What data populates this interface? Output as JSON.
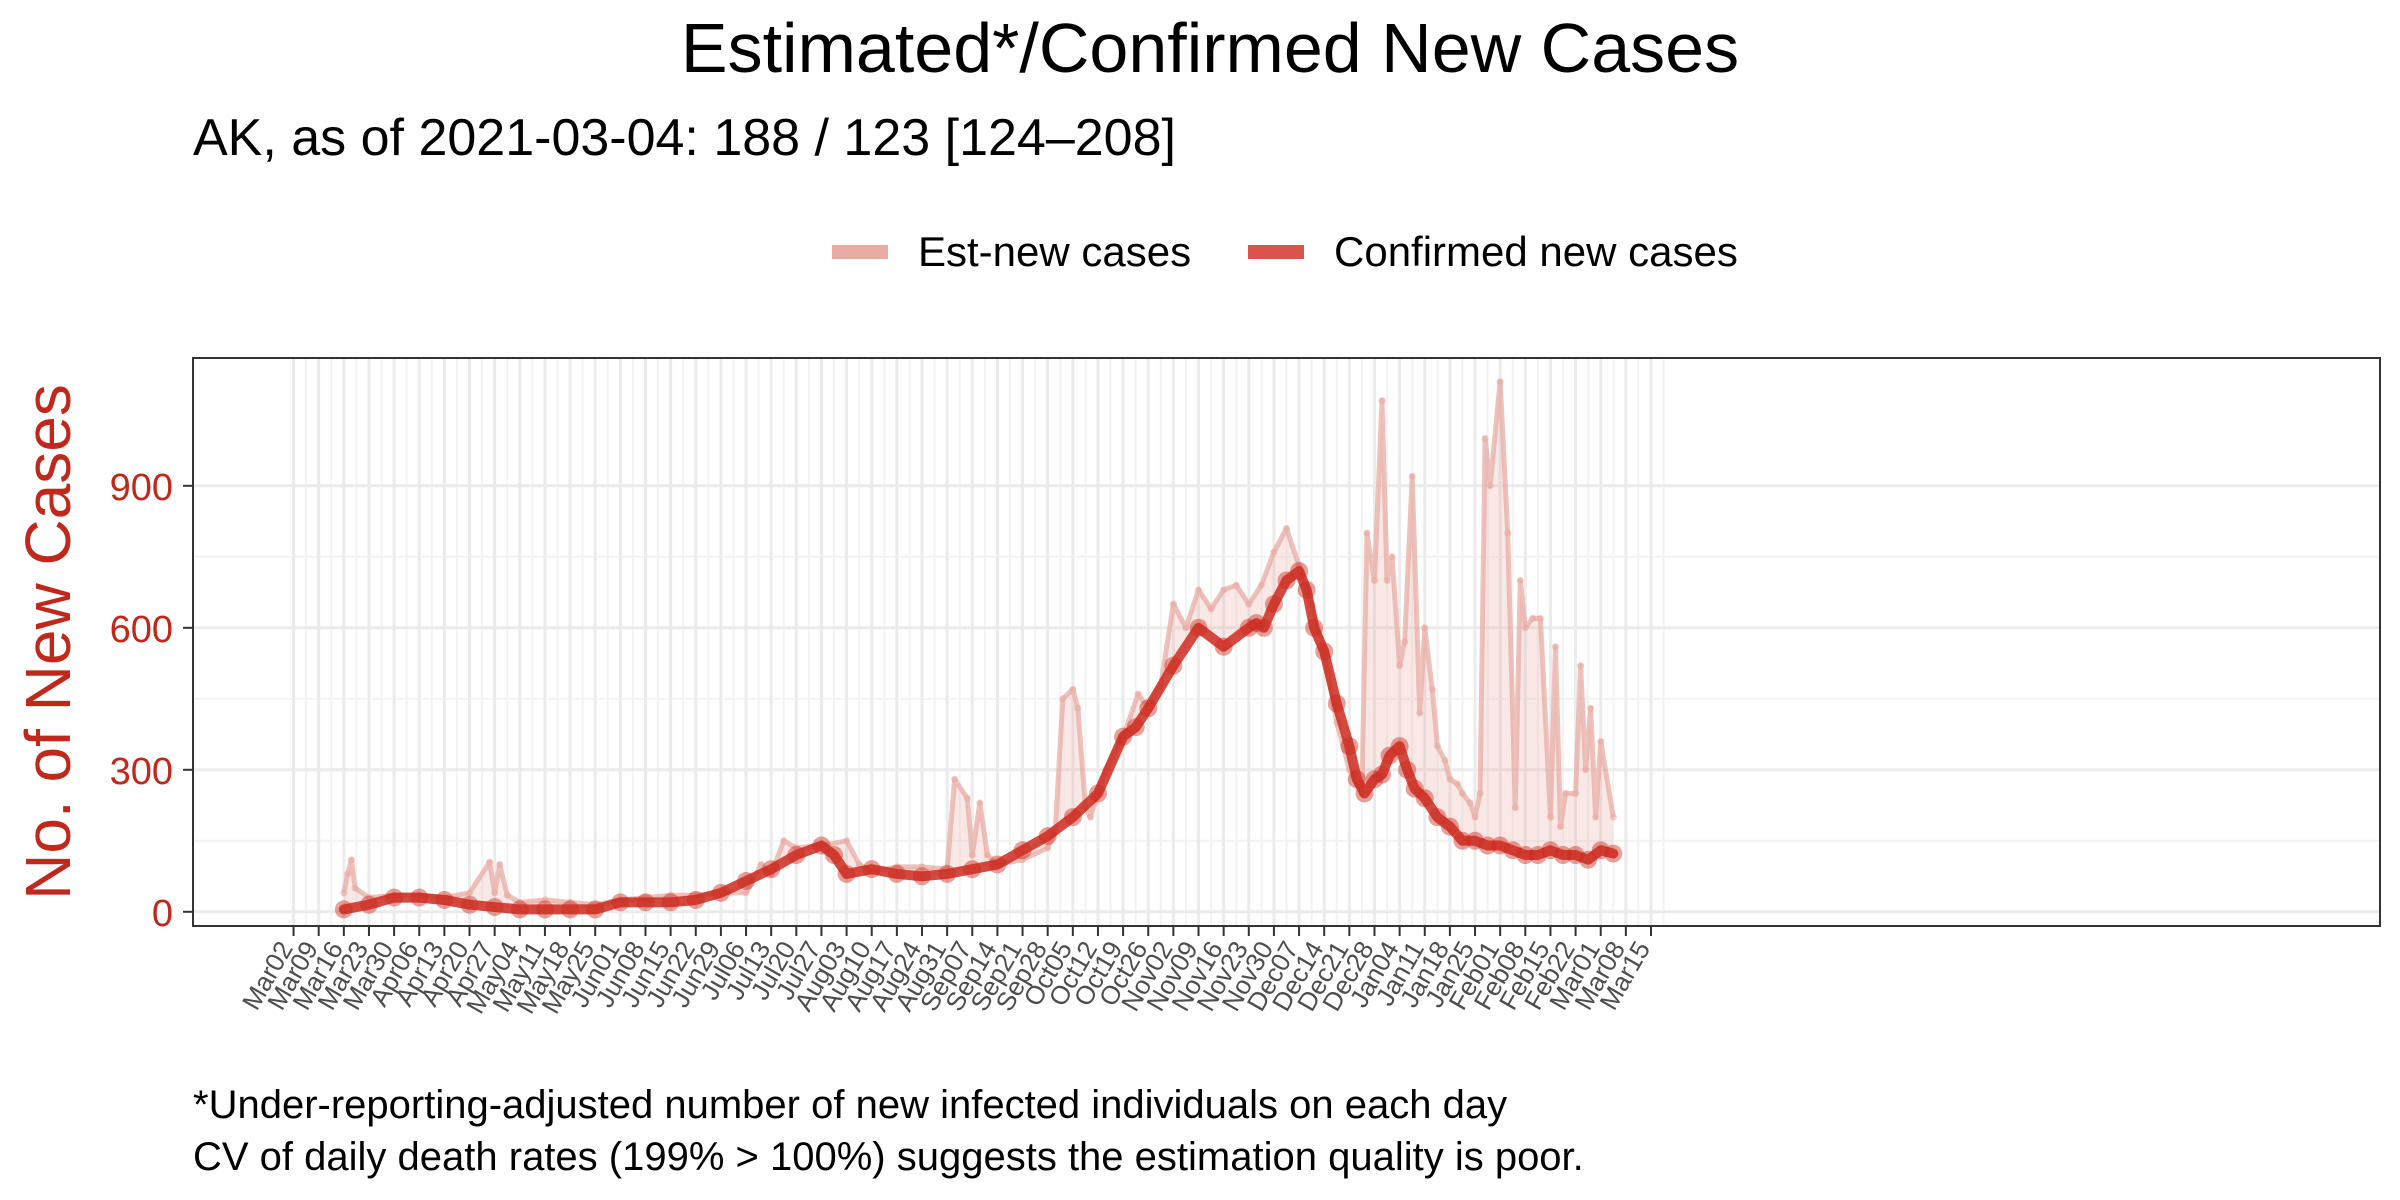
{
  "chart_data": {
    "type": "line",
    "title": "Estimated*/Confirmed New Cases",
    "subtitle": "AK, as of 2021-03-04: 188 / 123 [124–208]",
    "xlabel": "",
    "ylabel": "No. of New Cases",
    "ylim": [
      -30,
      1170
    ],
    "yticks": [
      0,
      300,
      600,
      900
    ],
    "xlim": [
      -4,
      83
    ],
    "grid": true,
    "legend_position": "top",
    "legend": [
      {
        "label": "Est-new cases",
        "color": "#e8aca4"
      },
      {
        "label": "Confirmed new cases",
        "color": "#d9544a"
      }
    ],
    "x_tick_labels": [
      "Mar02",
      "Mar09",
      "Mar16",
      "Mar23",
      "Mar30",
      "Apr06",
      "Apr13",
      "Apr20",
      "Apr27",
      "May04",
      "May11",
      "May18",
      "May25",
      "Jun01",
      "Jun08",
      "Jun15",
      "Jun22",
      "Jun29",
      "Jul06",
      "Jul13",
      "Jul20",
      "Jul27",
      "Aug03",
      "Aug10",
      "Aug17",
      "Aug24",
      "Aug31",
      "Sep07",
      "Sep14",
      "Sep21",
      "Sep28",
      "Oct05",
      "Oct12",
      "Oct19",
      "Oct26",
      "Nov02",
      "Nov09",
      "Nov16",
      "Nov23",
      "Nov30",
      "Dec07",
      "Dec14",
      "Dec21",
      "Dec28",
      "Jan04",
      "Jan11",
      "Jan18",
      "Jan25",
      "Feb01",
      "Feb08",
      "Feb15",
      "Feb22",
      "Mar01",
      "Mar08",
      "Mar15"
    ],
    "x_unit": "weeks since Mar02",
    "series": [
      {
        "name": "Est-new cases",
        "color": "#e8aca4",
        "x": [
          2.0,
          2.15,
          2.3,
          2.45,
          3.0,
          4.0,
          5.0,
          6.0,
          7.0,
          7.8,
          8.0,
          8.2,
          8.5,
          9.0,
          10.0,
          11.0,
          12.0,
          13.0,
          14.0,
          15.0,
          16.0,
          17.0,
          18.0,
          18.6,
          19.0,
          19.5,
          20.0,
          21.0,
          22.0,
          22.5,
          23.0,
          24.0,
          25.0,
          26.0,
          26.3,
          26.8,
          27.0,
          27.3,
          27.6,
          28.0,
          29.0,
          30.0,
          30.3,
          30.6,
          31.0,
          31.2,
          31.5,
          31.7,
          32.0,
          32.3,
          33.0,
          33.6,
          34.0,
          34.5,
          35.0,
          35.5,
          36.0,
          36.5,
          37.0,
          37.5,
          38.0,
          38.5,
          39.0,
          39.5,
          40.0,
          40.5,
          41.0,
          41.5,
          42.0,
          42.5,
          42.7,
          43.0,
          43.3,
          43.5,
          43.7,
          44.0,
          44.2,
          44.5,
          44.8,
          45.0,
          45.3,
          45.5,
          45.8,
          46.0,
          46.3,
          46.5,
          46.8,
          47.0,
          47.2,
          47.4,
          47.6,
          48.0,
          48.3,
          48.6,
          48.8,
          49.0,
          49.3,
          49.6,
          50.0,
          50.2,
          50.4,
          50.6,
          51.0,
          51.2,
          51.4,
          51.6,
          51.8,
          52.0,
          52.5
        ],
        "values": [
          40,
          80,
          110,
          50,
          30,
          35,
          35,
          30,
          40,
          105,
          40,
          100,
          35,
          20,
          25,
          20,
          15,
          25,
          30,
          35,
          35,
          40,
          40,
          100,
          80,
          150,
          135,
          140,
          150,
          100,
          85,
          95,
          95,
          90,
          280,
          240,
          120,
          230,
          120,
          100,
          110,
          135,
          170,
          450,
          470,
          430,
          220,
          200,
          250,
          300,
          370,
          460,
          430,
          480,
          650,
          600,
          680,
          640,
          680,
          690,
          650,
          690,
          760,
          810,
          730,
          650,
          550,
          400,
          300,
          250,
          800,
          700,
          1080,
          700,
          750,
          520,
          570,
          920,
          420,
          600,
          470,
          350,
          320,
          280,
          270,
          250,
          230,
          200,
          250,
          1000,
          900,
          1120,
          800,
          220,
          700,
          600,
          620,
          620,
          200,
          560,
          180,
          250,
          250,
          520,
          300,
          430,
          200,
          360,
          200
        ]
      },
      {
        "name": "Confirmed new cases",
        "color": "#cc2a1e",
        "x": [
          2.0,
          3.0,
          4.0,
          5.0,
          6.0,
          7.0,
          8.0,
          9.0,
          10.0,
          11.0,
          12.0,
          13.0,
          14.0,
          15.0,
          16.0,
          17.0,
          18.0,
          19.0,
          20.0,
          21.0,
          21.5,
          22.0,
          23.0,
          24.0,
          25.0,
          26.0,
          27.0,
          28.0,
          29.0,
          30.0,
          31.0,
          32.0,
          33.0,
          33.5,
          34.0,
          35.0,
          36.0,
          37.0,
          38.0,
          38.3,
          38.6,
          39.0,
          39.5,
          40.0,
          40.3,
          40.6,
          41.0,
          41.5,
          42.0,
          42.3,
          42.6,
          43.0,
          43.3,
          43.6,
          44.0,
          44.3,
          44.6,
          45.0,
          45.5,
          46.0,
          46.5,
          47.0,
          47.5,
          48.0,
          48.5,
          49.0,
          49.5,
          50.0,
          50.5,
          51.0,
          51.5,
          52.0,
          52.5
        ],
        "values": [
          5,
          15,
          30,
          30,
          25,
          15,
          10,
          5,
          5,
          5,
          5,
          20,
          20,
          20,
          25,
          40,
          65,
          90,
          120,
          140,
          120,
          80,
          90,
          80,
          75,
          80,
          90,
          100,
          130,
          160,
          200,
          250,
          370,
          390,
          430,
          520,
          600,
          560,
          600,
          610,
          600,
          650,
          700,
          720,
          680,
          600,
          550,
          440,
          350,
          280,
          250,
          280,
          290,
          330,
          350,
          300,
          260,
          240,
          200,
          180,
          150,
          150,
          140,
          140,
          130,
          120,
          120,
          130,
          120,
          120,
          110,
          130,
          123
        ]
      }
    ],
    "notes": [
      "*Under-reporting-adjusted number of new infected individuals on each day",
      "CV of daily death rates (199% > 100%) suggests the estimation quality is poor."
    ]
  }
}
